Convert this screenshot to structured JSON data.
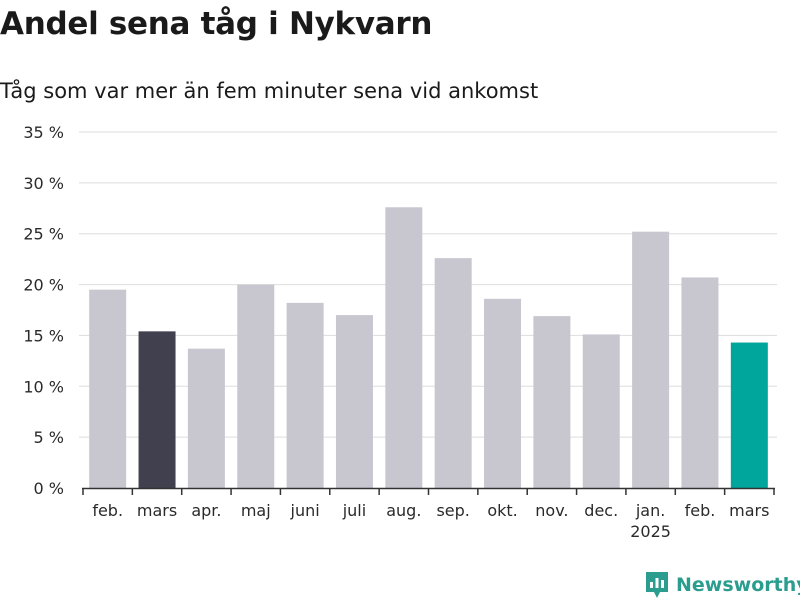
{
  "title": "Andel sena tåg i Nykvarn",
  "subtitle": "Tåg som var mer än fem minuter sena vid ankomst",
  "brand": {
    "name": "Newsworthy",
    "icon": "newsworthy-logo-icon"
  },
  "colors": {
    "default_bar": "#c8c7d0",
    "highlight_prev": "#40404e",
    "highlight_current": "#00a59b",
    "grid": "#dddddd",
    "axis": "#333333",
    "brand": "#2a9d8f"
  },
  "chart_data": {
    "type": "bar",
    "categories": [
      "feb.",
      "mars",
      "apr.",
      "maj",
      "juni",
      "juli",
      "aug.",
      "sep.",
      "okt.",
      "nov.",
      "dec.",
      "jan.",
      "feb.",
      "mars"
    ],
    "year_labels": [
      "",
      "",
      "",
      "",
      "",
      "",
      "",
      "",
      "",
      "",
      "",
      "2025",
      "",
      ""
    ],
    "values": [
      19.5,
      15.4,
      13.7,
      20.0,
      18.2,
      17.0,
      27.6,
      22.6,
      18.6,
      16.9,
      15.1,
      25.2,
      20.7,
      14.3
    ],
    "highlight": [
      "default",
      "prev",
      "default",
      "default",
      "default",
      "default",
      "default",
      "default",
      "default",
      "default",
      "default",
      "default",
      "default",
      "current"
    ],
    "yticks": [
      "0 %",
      "5 %",
      "10 %",
      "15 %",
      "20 %",
      "25 %",
      "30 %",
      "35 %"
    ],
    "ylim": [
      0,
      35
    ],
    "grid": true
  }
}
